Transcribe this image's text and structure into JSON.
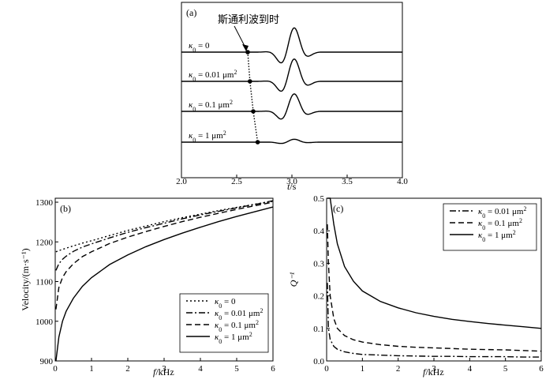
{
  "chart_data": [
    {
      "type": "line",
      "panel_label": "(a)",
      "annotation": "斯通利波到时",
      "xlabel_var": "t",
      "xlabel_unit": "/s",
      "xlim": [
        2.0,
        4.0
      ],
      "xticks": [
        "2.0",
        "2.5",
        "3.0",
        "3.5",
        "4.0"
      ],
      "series": [
        {
          "name": "κ₀ = 0",
          "arrival_t": 2.6,
          "amplitude": 1.0
        },
        {
          "name": "κ₀ = 0.01 μm²",
          "arrival_t": 2.62,
          "amplitude": 0.92
        },
        {
          "name": "κ₀ = 0.1 μm²",
          "arrival_t": 2.65,
          "amplitude": 0.72
        },
        {
          "name": "κ₀ = 1 μm²",
          "arrival_t": 2.69,
          "amplitude": 0.12
        }
      ]
    },
    {
      "type": "line",
      "panel_label": "(b)",
      "xlabel_var": "f",
      "xlabel_unit": "/kHz",
      "ylabel": "Velocity/(m·s⁻¹)",
      "xlim": [
        0,
        6
      ],
      "ylim": [
        900,
        1310
      ],
      "xticks": [
        "0",
        "1",
        "2",
        "3",
        "4",
        "5",
        "6"
      ],
      "yticks": [
        "900",
        "1000",
        "1100",
        "1200",
        "1300"
      ],
      "legend_position": "bottom-right",
      "x": [
        0.02,
        0.1,
        0.2,
        0.3,
        0.5,
        0.75,
        1,
        1.5,
        2,
        2.5,
        3,
        3.5,
        4,
        4.5,
        5,
        5.5,
        6
      ],
      "series": [
        {
          "name": "κ₀ = 0",
          "style": "dotted",
          "values": [
            1175,
            1178,
            1181,
            1184,
            1190,
            1197,
            1203,
            1216,
            1229,
            1240,
            1251,
            1261,
            1270,
            1279,
            1287,
            1295,
            1302
          ]
        },
        {
          "name": "κ₀ = 0.01 μm²",
          "style": "dashdot",
          "values": [
            1128,
            1145,
            1156,
            1164,
            1176,
            1187,
            1195,
            1210,
            1224,
            1236,
            1247,
            1258,
            1268,
            1277,
            1286,
            1294,
            1304
          ]
        },
        {
          "name": "κ₀ = 0.1 μm²",
          "style": "dashed",
          "values": [
            1030,
            1085,
            1110,
            1125,
            1145,
            1163,
            1175,
            1196,
            1212,
            1226,
            1239,
            1251,
            1262,
            1272,
            1282,
            1291,
            1300
          ]
        },
        {
          "name": "κ₀ = 1 μm²",
          "style": "solid",
          "values": [
            900,
            960,
            1000,
            1025,
            1058,
            1088,
            1110,
            1143,
            1167,
            1188,
            1206,
            1222,
            1237,
            1251,
            1264,
            1276,
            1288
          ]
        }
      ]
    },
    {
      "type": "line",
      "panel_label": "(c)",
      "xlabel_var": "f",
      "xlabel_unit": "/kHz",
      "ylabel": "Q⁻¹",
      "xlim": [
        0,
        6
      ],
      "ylim": [
        0,
        0.5
      ],
      "xticks": [
        "0",
        "1",
        "2",
        "3",
        "4",
        "5",
        "6"
      ],
      "yticks": [
        "0.0",
        "0.1",
        "0.2",
        "0.3",
        "0.4",
        "0.5"
      ],
      "legend_position": "top-right",
      "x": [
        0.02,
        0.05,
        0.1,
        0.2,
        0.3,
        0.5,
        0.75,
        1,
        1.5,
        2,
        2.5,
        3,
        3.5,
        4,
        4.5,
        5,
        5.5,
        6
      ],
      "series": [
        {
          "name": "κ₀ = 0.01 μm²",
          "style": "dashdot",
          "values": [
            0.24,
            0.1,
            0.066,
            0.045,
            0.036,
            0.028,
            0.023,
            0.02,
            0.018,
            0.016,
            0.015,
            0.014,
            0.014,
            0.013,
            0.013,
            0.013,
            0.012,
            0.012
          ]
        },
        {
          "name": "κ₀ = 0.1 μm²",
          "style": "dashed",
          "values": [
            0.42,
            0.3,
            0.2,
            0.13,
            0.1,
            0.078,
            0.065,
            0.058,
            0.05,
            0.045,
            0.042,
            0.04,
            0.038,
            0.036,
            0.035,
            0.034,
            0.032,
            0.03
          ]
        },
        {
          "name": "κ₀ = 1 μm²",
          "style": "solid",
          "values": [
            0.52,
            0.51,
            0.5,
            0.42,
            0.36,
            0.29,
            0.245,
            0.215,
            0.183,
            0.163,
            0.148,
            0.137,
            0.128,
            0.121,
            0.115,
            0.11,
            0.105,
            0.1
          ]
        }
      ]
    }
  ]
}
